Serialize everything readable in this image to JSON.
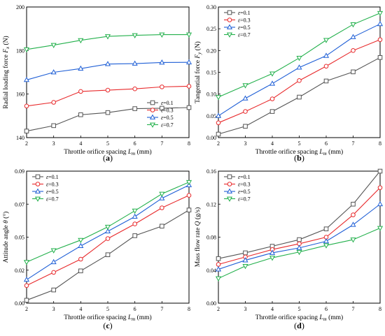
{
  "legend_prefix": "ε=",
  "colors": {
    "s01": "#555555",
    "s03": "#e8292b",
    "s05": "#1f5fd6",
    "s07": "#22b04b"
  },
  "chart_data": [
    {
      "type": "line",
      "caption": "(a)",
      "ylabel": "Radial loading force F_x (N)",
      "ylabel_main": "Radial loading force ",
      "ylabel_sym": "F",
      "ylabel_sub": "x",
      "ylabel_tail": " (N)",
      "xlabel_main": "Throttle orifice spacing ",
      "xlabel_sym": "L",
      "xlabel_sub": "m",
      "xlabel_tail": " (mm)",
      "x": [
        2,
        3,
        4,
        5,
        6,
        7,
        8
      ],
      "xlim": [
        2,
        8
      ],
      "ylim": [
        140,
        200
      ],
      "yticks": [
        140,
        160,
        180,
        200
      ],
      "ytick_labels": [
        "140",
        "160",
        "180",
        "200"
      ],
      "xticks": [
        2,
        3,
        4,
        5,
        6,
        7,
        8
      ],
      "xtick_labels": [
        "2",
        "3",
        "4",
        "5",
        "6",
        "7",
        "8"
      ],
      "legend_position": "bottom-right",
      "series": [
        {
          "name": "0.1",
          "marker": "square",
          "values": [
            143,
            145.5,
            150.5,
            151.5,
            153.3,
            153.5,
            153.8
          ]
        },
        {
          "name": "0.3",
          "marker": "circle",
          "values": [
            154.5,
            156.2,
            161.2,
            161.8,
            162.4,
            163.3,
            163.6
          ]
        },
        {
          "name": "0.5",
          "marker": "triangle",
          "values": [
            166.5,
            170,
            171.7,
            173.8,
            174,
            174.5,
            174.6
          ]
        },
        {
          "name": "0.7",
          "marker": "triangle-down",
          "values": [
            180.5,
            182.5,
            184.7,
            186.5,
            187,
            187.3,
            187.3
          ]
        }
      ]
    },
    {
      "type": "line",
      "caption": "(b)",
      "ylabel_main": "Tangential force ",
      "ylabel_sym": "F",
      "ylabel_sub": "y",
      "ylabel_tail": " (N)",
      "xlabel_main": "Throttle orifice spacing ",
      "xlabel_sym": "L",
      "xlabel_sub": "m",
      "xlabel_tail": " (mm)",
      "x": [
        2,
        3,
        4,
        5,
        6,
        7,
        8
      ],
      "xlim": [
        2,
        8
      ],
      "ylim": [
        0,
        0.3
      ],
      "yticks": [
        0,
        0.05,
        0.1,
        0.15,
        0.2,
        0.25,
        0.3
      ],
      "ytick_labels": [
        "0.00",
        "0.05",
        "0.10",
        "0.15",
        "0.20",
        "0.25",
        "0.30"
      ],
      "xticks": [
        2,
        3,
        4,
        5,
        6,
        7,
        8
      ],
      "xtick_labels": [
        "2",
        "3",
        "4",
        "5",
        "6",
        "7",
        "8"
      ],
      "legend_position": "top-left",
      "series": [
        {
          "name": "0.1",
          "marker": "square",
          "values": [
            0.008,
            0.026,
            0.06,
            0.093,
            0.13,
            0.151,
            0.184
          ]
        },
        {
          "name": "0.3",
          "marker": "circle",
          "values": [
            0.034,
            0.06,
            0.089,
            0.131,
            0.164,
            0.2,
            0.225
          ]
        },
        {
          "name": "0.5",
          "marker": "triangle",
          "values": [
            0.05,
            0.09,
            0.124,
            0.161,
            0.188,
            0.231,
            0.261
          ]
        },
        {
          "name": "0.7",
          "marker": "triangle-down",
          "values": [
            0.093,
            0.12,
            0.147,
            0.183,
            0.224,
            0.26,
            0.286
          ]
        }
      ]
    },
    {
      "type": "line",
      "caption": "(c)",
      "ylabel_main": "Attitude angle ",
      "ylabel_sym": "θ",
      "ylabel_sub": "",
      "ylabel_tail": " (°)",
      "xlabel_main": "Throttle orifice spacing ",
      "xlabel_sym": "L",
      "xlabel_sub": "m",
      "xlabel_tail": " (mm)",
      "x": [
        2,
        3,
        4,
        5,
        6,
        7,
        8
      ],
      "xlim": [
        2,
        8
      ],
      "ylim": [
        0,
        0.09
      ],
      "yticks": [
        0,
        0.02,
        0.05,
        0.07,
        0.09
      ],
      "ytick_labels": [
        "0.00",
        "0.02",
        "0.05",
        "0.07",
        "0.09"
      ],
      "ytick_positions": [
        0,
        0.0225,
        0.045,
        0.0675,
        0.09
      ],
      "xticks": [
        2,
        3,
        4,
        5,
        6,
        7,
        8
      ],
      "xtick_labels": [
        "2",
        "3",
        "4",
        "5",
        "6",
        "7",
        "8"
      ],
      "legend_position": "top-left",
      "series": [
        {
          "name": "0.1",
          "marker": "square",
          "values": [
            0.002,
            0.009,
            0.022,
            0.033,
            0.046,
            0.0525,
            0.0635
          ]
        },
        {
          "name": "0.3",
          "marker": "circle",
          "values": [
            0.012,
            0.021,
            0.03,
            0.044,
            0.054,
            0.065,
            0.0735
          ]
        },
        {
          "name": "0.5",
          "marker": "triangle",
          "values": [
            0.016,
            0.028,
            0.039,
            0.049,
            0.059,
            0.0715,
            0.0805
          ]
        },
        {
          "name": "0.7",
          "marker": "triangle-down",
          "values": [
            0.028,
            0.036,
            0.043,
            0.052,
            0.063,
            0.0745,
            0.0825
          ]
        }
      ]
    },
    {
      "type": "line",
      "caption": "(d)",
      "ylabel_main": "Mass flow rate ",
      "ylabel_sym": "Q",
      "ylabel_sub": "",
      "ylabel_tail": " (g/s)",
      "xlabel_main": "Throttle orifice spacing ",
      "xlabel_sym": "L",
      "xlabel_sub": "m",
      "xlabel_tail": " (mm)",
      "x": [
        2,
        3,
        4,
        5,
        6,
        7,
        8
      ],
      "xlim": [
        2,
        8
      ],
      "ylim": [
        0,
        0.16
      ],
      "yticks": [
        0,
        0.04,
        0.08,
        0.12,
        0.16
      ],
      "ytick_labels": [
        "0.00",
        "0.04",
        "0.08",
        "0.12",
        "0.16"
      ],
      "xticks": [
        2,
        3,
        4,
        5,
        6,
        7,
        8
      ],
      "xtick_labels": [
        "2",
        "3",
        "4",
        "5",
        "6",
        "7",
        "8"
      ],
      "legend_position": "top-left",
      "series": [
        {
          "name": "0.1",
          "marker": "square",
          "values": [
            0.054,
            0.061,
            0.069,
            0.077,
            0.09,
            0.12,
            0.16
          ]
        },
        {
          "name": "0.3",
          "marker": "circle",
          "values": [
            0.047,
            0.056,
            0.065,
            0.072,
            0.08,
            0.107,
            0.14
          ]
        },
        {
          "name": "0.5",
          "marker": "triangle",
          "values": [
            0.041,
            0.052,
            0.061,
            0.067,
            0.075,
            0.095,
            0.12
          ]
        },
        {
          "name": "0.7",
          "marker": "triangle-down",
          "values": [
            0.03,
            0.045,
            0.055,
            0.062,
            0.07,
            0.077,
            0.091
          ]
        }
      ]
    }
  ]
}
